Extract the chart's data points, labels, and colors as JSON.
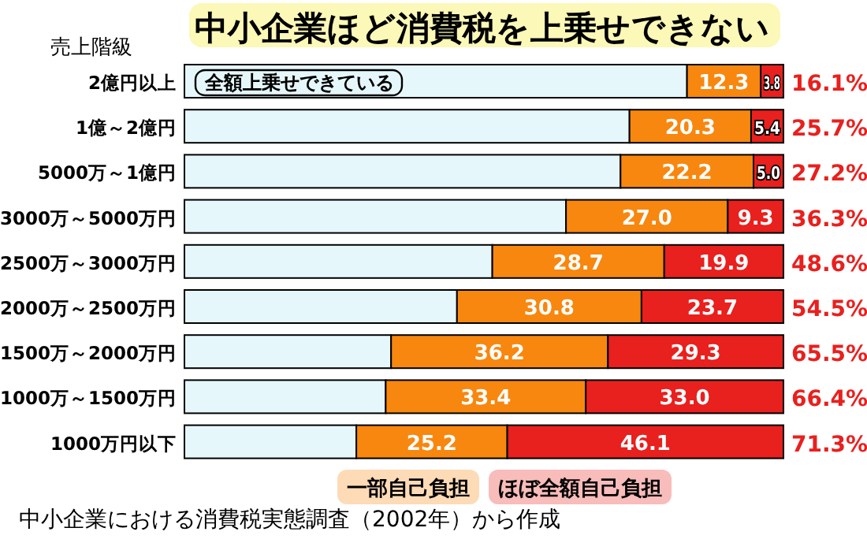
{
  "chart_data": {
    "type": "bar",
    "orientation": "horizontal",
    "stacked": true,
    "title": "中小企業ほど消費税を上乗せできない",
    "ylabel": "売上階級",
    "categories": [
      "2億円以上",
      "1億～2億円",
      "5000万～1億円",
      "3000万～5000万円",
      "2500万～3000万円",
      "2000万～2500万円",
      "1500万～2000万円",
      "1000万～1500万円",
      "1000万円以下"
    ],
    "xlim": [
      0,
      100
    ],
    "series": [
      {
        "name": "全額上乗せできている",
        "color": "#e6f7fb",
        "values": [
          83.9,
          74.3,
          72.8,
          63.7,
          51.4,
          45.5,
          34.5,
          33.6,
          28.7
        ]
      },
      {
        "name": "一部自己負担",
        "color": "#f7870f",
        "values": [
          12.3,
          20.3,
          22.2,
          27.0,
          28.7,
          30.8,
          36.2,
          33.4,
          25.2
        ],
        "value_labels": [
          "12.3",
          "20.3",
          "22.2",
          "27.0",
          "28.7",
          "30.8",
          "36.2",
          "33.4",
          "25.2"
        ]
      },
      {
        "name": "ほぼ全額自己負担",
        "color": "#e8201e",
        "values": [
          3.8,
          5.4,
          5.0,
          9.3,
          19.9,
          23.7,
          29.3,
          33.0,
          46.1
        ],
        "value_labels": [
          "3.8",
          "5.4",
          "5.0",
          "9.3",
          "19.9",
          "23.7",
          "29.3",
          "33.0",
          "46.1"
        ]
      }
    ],
    "legend": "bottom",
    "annotations": [
      "16.1%",
      "25.7%",
      "27.2%",
      "36.3%",
      "48.6%",
      "54.5%",
      "65.5%",
      "66.4%",
      "71.3%",
      "中小企業における消費税実態調査（2002年）から作成"
    ]
  }
}
